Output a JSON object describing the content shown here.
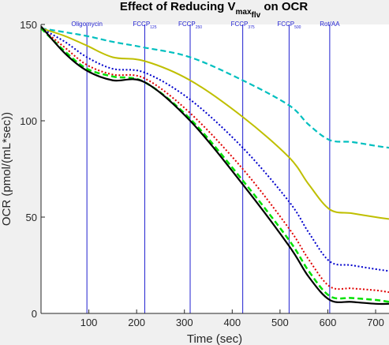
{
  "chart_data": {
    "type": "line",
    "title": {
      "main": "Effect of Reducing V",
      "sub": "max",
      "sub2": "flv",
      "rest": " on OCR"
    },
    "xlabel": "Time (sec)",
    "ylabel": "OCR (pmol/(mL*sec))",
    "xlim": [
      0,
      728
    ],
    "ylim": [
      0,
      150
    ],
    "xticks": [
      100,
      200,
      300,
      400,
      500,
      600,
      700
    ],
    "yticks": [
      0,
      50,
      100,
      150
    ],
    "grid": false,
    "annotations": [
      {
        "x": 96,
        "label": "Oligomycin",
        "sub": ""
      },
      {
        "x": 217,
        "label": "FCCP",
        "sub": "125"
      },
      {
        "x": 312,
        "label": "FCCP",
        "sub": "250"
      },
      {
        "x": 422,
        "label": "FCCP",
        "sub": "375"
      },
      {
        "x": 519,
        "label": "FCCP",
        "sub": "500"
      },
      {
        "x": 604,
        "label": "Rot/AA",
        "sub": ""
      }
    ],
    "series": [
      {
        "color": "#00bfbf",
        "style": "dashed",
        "width": 2.2,
        "x": [
          0,
          50,
          96,
          150,
          217,
          312,
          422,
          519,
          560,
          604,
          650,
          700,
          728
        ],
        "y": [
          148,
          146,
          144,
          141,
          138,
          133,
          121,
          108,
          98,
          90,
          89,
          87,
          86
        ]
      },
      {
        "color": "#bfbf00",
        "style": "solid",
        "width": 2,
        "x": [
          0,
          50,
          96,
          150,
          217,
          312,
          422,
          519,
          560,
          604,
          650,
          700,
          728
        ],
        "y": [
          148,
          144,
          139,
          133,
          131,
          121,
          102,
          81,
          67,
          54,
          52,
          50,
          49
        ]
      },
      {
        "color": "#0000cc",
        "style": "dotted",
        "width": 2,
        "x": [
          0,
          50,
          96,
          150,
          217,
          312,
          422,
          519,
          560,
          604,
          650,
          700,
          728
        ],
        "y": [
          148,
          141,
          133,
          127,
          125,
          111,
          86,
          58,
          42,
          27,
          25,
          23,
          22
        ]
      },
      {
        "color": "#e00000",
        "style": "dotted",
        "width": 2,
        "x": [
          0,
          50,
          96,
          150,
          217,
          312,
          422,
          519,
          560,
          604,
          650,
          700,
          728
        ],
        "y": [
          148,
          138,
          129,
          124,
          122,
          104,
          75,
          44,
          28,
          14,
          13,
          12,
          11
        ]
      },
      {
        "color": "#00e000",
        "style": "dashed",
        "width": 2.5,
        "x": [
          0,
          50,
          96,
          150,
          217,
          312,
          422,
          519,
          560,
          604,
          650,
          700,
          728
        ],
        "y": [
          148,
          136,
          127,
          123,
          120,
          101,
          69,
          38,
          22,
          9,
          8,
          7,
          6
        ]
      },
      {
        "color": "#000000",
        "style": "solid",
        "width": 2.2,
        "x": [
          0,
          50,
          96,
          150,
          217,
          312,
          422,
          519,
          560,
          604,
          650,
          700,
          728
        ],
        "y": [
          149,
          135,
          126,
          121,
          120,
          100,
          67,
          35,
          19,
          7,
          6,
          5,
          5
        ]
      }
    ]
  }
}
